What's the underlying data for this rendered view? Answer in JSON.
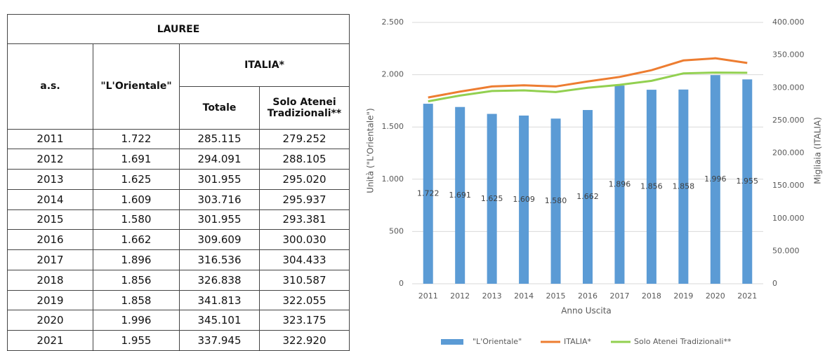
{
  "table": {
    "title": "LAUREE",
    "headers": [
      "a.s.",
      "\"L'Orientale\"",
      "ITALIA*",
      "Totale",
      "Solo Atenei Tradizionali**"
    ],
    "rows": [
      [
        "2011",
        "1.722",
        "285.115",
        "279.252"
      ],
      [
        "2012",
        "1.691",
        "294.091",
        "288.105"
      ],
      [
        "2013",
        "1.625",
        "301.955",
        "295.020"
      ],
      [
        "2014",
        "1.609",
        "303.716",
        "295.937"
      ],
      [
        "2015",
        "1.580",
        "301.955",
        "293.381"
      ],
      [
        "2016",
        "1.662",
        "309.609",
        "300.030"
      ],
      [
        "2017",
        "1.896",
        "316.536",
        "304.433"
      ],
      [
        "2018",
        "1.856",
        "326.838",
        "310.587"
      ],
      [
        "2019",
        "1.858",
        "341.813",
        "322.055"
      ],
      [
        "2020",
        "1.996",
        "345.101",
        "323.175"
      ],
      [
        "2021",
        "1.955",
        "337.945",
        "322.920"
      ]
    ]
  },
  "chart_data": {
    "type": "combo",
    "x_label": "Anno Uscita",
    "y_label": "Unità (\"L'Orientale\")",
    "y2_label": "Migliaia (ITALIA)",
    "categories": [
      "2011",
      "2012",
      "2013",
      "2014",
      "2015",
      "2016",
      "2017",
      "2018",
      "2019",
      "2020",
      "2021"
    ],
    "series": [
      {
        "name": "\"L'Orientale\"",
        "type": "bar",
        "color": "#5b9bd5",
        "values": [
          1722,
          1691,
          1625,
          1609,
          1580,
          1662,
          1896,
          1856,
          1858,
          1996,
          1955
        ],
        "value_labels": [
          "1.722",
          "1.691",
          "1.625",
          "1.609",
          "1.580",
          "1.662",
          "1.896",
          "1.856",
          "1.858",
          "1.996",
          "1.955"
        ]
      },
      {
        "name": "ITALIA*",
        "type": "line",
        "axis": "y2",
        "color": "#ed7d31",
        "values": [
          285115,
          294091,
          301955,
          303716,
          301955,
          309609,
          316536,
          326838,
          341813,
          345101,
          337945
        ]
      },
      {
        "name": "Solo Atenei Tradizionali**",
        "type": "line",
        "axis": "y2",
        "color": "#92d050",
        "values": [
          279252,
          288105,
          295020,
          295937,
          293381,
          300030,
          304433,
          310587,
          322055,
          323175,
          322920
        ]
      }
    ],
    "ylim": [
      0,
      2500
    ],
    "yticks": [
      0,
      500,
      {
        "value": 1000,
        "label": "1.000"
      },
      {
        "value": 1500,
        "label": "1.500"
      },
      {
        "value": 2000,
        "label": "2.000"
      },
      {
        "value": 2500,
        "label": "2.500"
      }
    ],
    "y2lim": [
      0,
      400000
    ],
    "y2ticks": [
      0,
      {
        "value": 50000,
        "label": "50.000"
      },
      {
        "value": 100000,
        "label": "100.000"
      },
      {
        "value": 150000,
        "label": "150.000"
      },
      {
        "value": 200000,
        "label": "200.000"
      },
      {
        "value": 250000,
        "label": "250.000"
      },
      {
        "value": 300000,
        "label": "300.000"
      },
      {
        "value": 350000,
        "label": "350.000"
      },
      {
        "value": 400000,
        "label": "400.000"
      }
    ],
    "grid": true,
    "legend": "bottom"
  }
}
